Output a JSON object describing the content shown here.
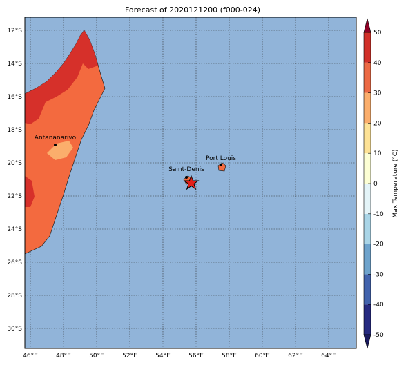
{
  "title": "Forecast of 2020121200 (f000-024)",
  "lat_labels": [
    "12°S",
    "14°S",
    "16°S",
    "18°S",
    "20°S",
    "22°S",
    "24°S",
    "26°S",
    "28°S",
    "30°S"
  ],
  "lon_labels": [
    "46°E",
    "48°E",
    "50°E",
    "52°E",
    "54°E",
    "56°E",
    "58°E",
    "60°E",
    "62°E",
    "64°E"
  ],
  "places": [
    "Antananarivo",
    "Saint-Denis",
    "Port Louis"
  ],
  "colorbar": {
    "label": "Max Temperature (°C)",
    "ticks": [
      -50,
      -40,
      -30,
      -20,
      -10,
      0,
      10,
      20,
      30,
      40,
      50
    ],
    "colors": [
      "#262a80",
      "#4263ad",
      "#6ea3cc",
      "#aad5e7",
      "#e4f4f8",
      "#fcfed4",
      "#fde296",
      "#fbae6c",
      "#ec6a45",
      "#d13029"
    ],
    "under": "#1a1a5e",
    "over": "#8e0025"
  }
}
